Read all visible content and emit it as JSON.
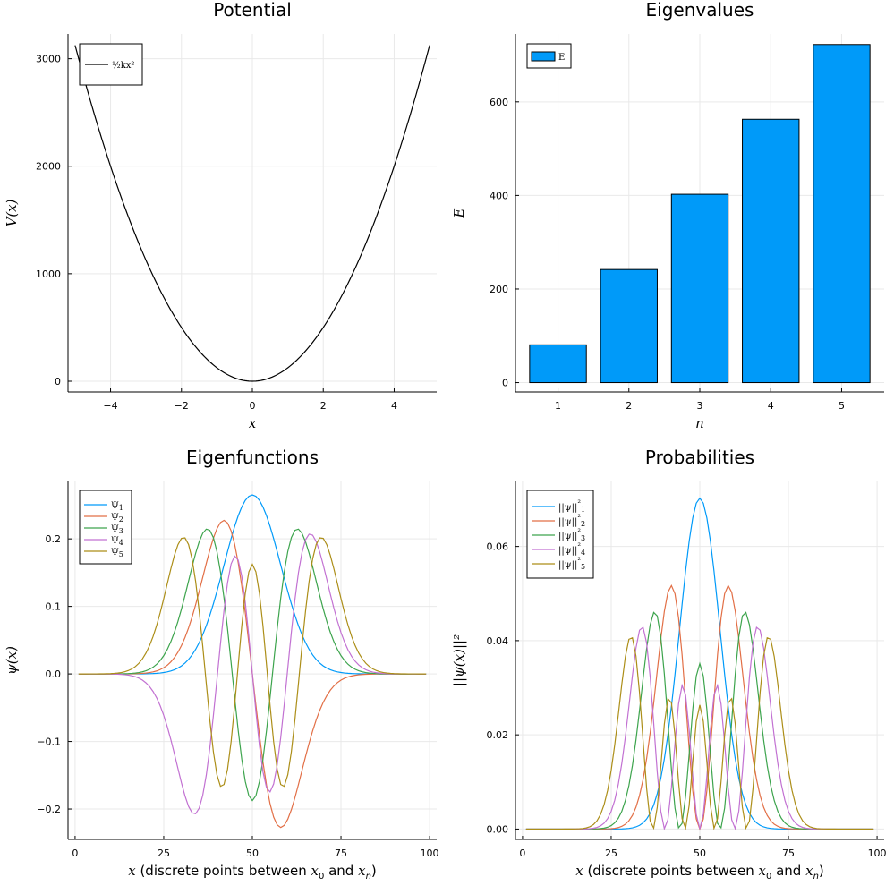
{
  "chart_data": [
    {
      "type": "line",
      "title": "Potential",
      "xlabel": "x",
      "ylabel": "V(x)",
      "xlim": [
        -5.2,
        5.2
      ],
      "ylim": [
        -100,
        3230
      ],
      "xticks": [
        -4,
        -2,
        0,
        2,
        4
      ],
      "xtick_labels": [
        "−4",
        "−2",
        "0",
        "2",
        "4"
      ],
      "yticks": [
        0,
        1000,
        2000,
        3000
      ],
      "ytick_labels": [
        "0",
        "1000",
        "2000",
        "3000"
      ],
      "grid": true,
      "legend_position": "top-left",
      "series": [
        {
          "name": "½kx²",
          "color": "#000000",
          "function": "0.5*k*x^2",
          "k": 250,
          "x_range": [
            -5,
            5
          ]
        }
      ]
    },
    {
      "type": "bar",
      "title": "Eigenvalues",
      "xlabel": "n",
      "ylabel": "E",
      "ylim": [
        -20,
        745
      ],
      "categories": [
        "1",
        "2",
        "3",
        "4",
        "5"
      ],
      "yticks": [
        0,
        200,
        400,
        600
      ],
      "ytick_labels": [
        "0",
        "200",
        "400",
        "600"
      ],
      "grid": true,
      "legend_position": "top-left",
      "series": [
        {
          "name": "E",
          "color": "#009af9",
          "values": [
            80.7,
            241.7,
            402.5,
            562.8,
            722.5
          ]
        }
      ]
    },
    {
      "type": "line",
      "title": "Eigenfunctions",
      "xlabel": "x (discrete points between x0 and xn)",
      "ylabel": "ψ(x)",
      "xlim": [
        -2,
        102
      ],
      "ylim": [
        -0.245,
        0.285
      ],
      "xticks": [
        0,
        25,
        50,
        75,
        100
      ],
      "xtick_labels": [
        "0",
        "25",
        "50",
        "75",
        "100"
      ],
      "yticks": [
        -0.2,
        -0.1,
        0.0,
        0.1,
        0.2
      ],
      "ytick_labels": [
        "−0.2",
        "−0.1",
        "0.0",
        "0.1",
        "0.2"
      ],
      "grid": true,
      "legend_position": "top-left",
      "model": {
        "center": 50,
        "scale": 8.03,
        "x_range": [
          1,
          99
        ]
      },
      "series": [
        {
          "name": "Ψ1",
          "color": "#009af9",
          "n": 0,
          "sign": 1
        },
        {
          "name": "Ψ2",
          "color": "#e26f46",
          "n": 1,
          "sign": -1
        },
        {
          "name": "Ψ3",
          "color": "#3da44d",
          "n": 2,
          "sign": 1
        },
        {
          "name": "Ψ4",
          "color": "#c271d2",
          "n": 3,
          "sign": 1
        },
        {
          "name": "Ψ5",
          "color": "#ac8e18",
          "n": 4,
          "sign": 1
        }
      ]
    },
    {
      "type": "line",
      "title": "Probabilities",
      "xlabel": "x (discrete points between x0 and xn)",
      "ylabel": "||ψ(x)||²",
      "xlim": [
        -2,
        102
      ],
      "ylim": [
        -0.0022,
        0.0738
      ],
      "xticks": [
        0,
        25,
        50,
        75,
        100
      ],
      "xtick_labels": [
        "0",
        "25",
        "50",
        "75",
        "100"
      ],
      "yticks": [
        0.0,
        0.02,
        0.04,
        0.06
      ],
      "ytick_labels": [
        "0.00",
        "0.02",
        "0.04",
        "0.06"
      ],
      "grid": true,
      "legend_position": "top-left",
      "model": {
        "center": 50,
        "scale": 8.03,
        "x_range": [
          1,
          99
        ]
      },
      "series": [
        {
          "name": "||ψ||²1",
          "color": "#009af9",
          "n": 0
        },
        {
          "name": "||ψ||²2",
          "color": "#e26f46",
          "n": 1
        },
        {
          "name": "||ψ||²3",
          "color": "#3da44d",
          "n": 2
        },
        {
          "name": "||ψ||²4",
          "color": "#c271d2",
          "n": 3
        },
        {
          "name": "||ψ||²5",
          "color": "#ac8e18",
          "n": 4
        }
      ]
    }
  ]
}
